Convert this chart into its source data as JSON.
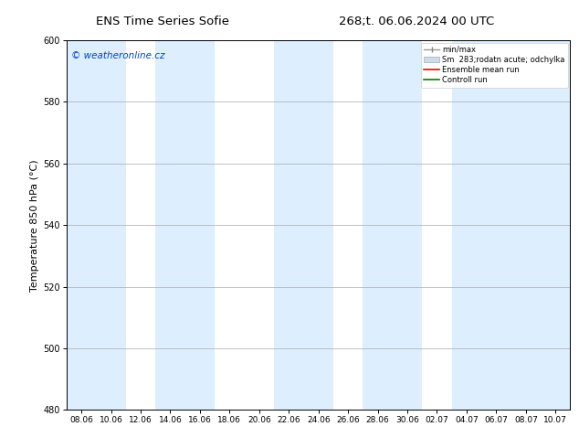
{
  "title_left": "ENS Time Series Sofie",
  "title_right": "268;t. 06.06.2024 00 UTC",
  "ylabel": "Temperature 850 hPa (°C)",
  "ylim": [
    480,
    600
  ],
  "yticks": [
    480,
    500,
    520,
    540,
    560,
    580,
    600
  ],
  "x_tick_labels": [
    "08.06",
    "10.06",
    "12.06",
    "14.06",
    "16.06",
    "18.06",
    "20.06",
    "22.06",
    "24.06",
    "26.06",
    "28.06",
    "30.06",
    "02.07",
    "04.07",
    "06.07",
    "08.07",
    "10.07"
  ],
  "watermark": "© weatheronline.cz",
  "watermark_color": "#0044cc",
  "legend_entries": [
    "min/max",
    "Sm  283;rodatn acute; odchylka",
    "Ensemble mean run",
    "Controll run"
  ],
  "legend_colors": [
    "#aaaaaa",
    "#c8ddf0",
    "#ff0000",
    "#008000"
  ],
  "band_color": "#ddeeff",
  "background_color": "#ffffff",
  "spine_color": "#000000",
  "shade_ranges": [
    [
      0,
      1
    ],
    [
      3,
      4
    ],
    [
      7,
      8
    ],
    [
      10,
      11
    ],
    [
      13,
      14
    ],
    [
      15,
      16
    ]
  ]
}
